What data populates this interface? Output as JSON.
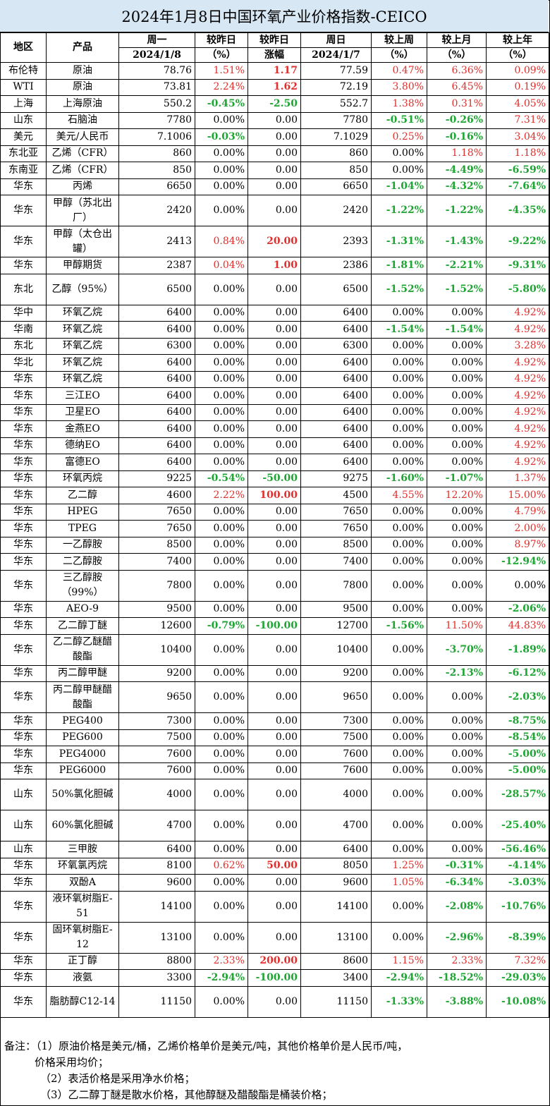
{
  "title": "2024年1月8日中国环氧产业价格指数-CEICO",
  "headers": {
    "region": "地区",
    "product": "产品",
    "mon_top": "周一",
    "mon_date": "2024/1/8",
    "chg_pct_top": "较昨日",
    "chg_pct_bottom": "（%）",
    "chg_amt_top": "较昨日",
    "chg_amt_bottom": "涨幅",
    "sun_top": "周日",
    "sun_date": "2024/1/7",
    "week_top": "较上周",
    "week_bottom": "（%）",
    "month_top": "较上月",
    "month_bottom": "（%）",
    "year_top": "较上年",
    "year_bottom": "（%）"
  },
  "rows": [
    {
      "region": "布伦特",
      "product": "原油",
      "mon": "78.76",
      "pct": "1.51%",
      "amt": "1.17",
      "sun": "77.59",
      "week": "0.47%",
      "month": "6.36%",
      "year": "0.09%"
    },
    {
      "region": "WTI",
      "product": "原油",
      "mon": "73.81",
      "pct": "2.24%",
      "amt": "1.62",
      "sun": "72.19",
      "week": "3.80%",
      "month": "6.45%",
      "year": "0.19%"
    },
    {
      "region": "上海",
      "product": "上海原油",
      "mon": "550.2",
      "pct": "-0.45%",
      "amt": "-2.50",
      "sun": "552.7",
      "week": "1.38%",
      "month": "0.31%",
      "year": "4.05%"
    },
    {
      "region": "山东",
      "product": "石脑油",
      "mon": "7780",
      "pct": "0.00%",
      "amt": "0.00",
      "sun": "7780",
      "week": "-0.51%",
      "month": "-0.26%",
      "year": "7.31%"
    },
    {
      "region": "美元",
      "product": "美元/人民币",
      "mon": "7.1006",
      "pct": "-0.03%",
      "amt": "0.00",
      "sun": "7.1029",
      "week": "0.25%",
      "month": "-0.16%",
      "year": "3.04%"
    },
    {
      "region": "东北亚",
      "product": "乙烯（CFR）",
      "mon": "860",
      "pct": "0.00%",
      "amt": "0.00",
      "sun": "860",
      "week": "0.00%",
      "month": "1.18%",
      "year": "1.18%"
    },
    {
      "region": "东南亚",
      "product": "乙烯（CFR）",
      "mon": "850",
      "pct": "0.00%",
      "amt": "0.00",
      "sun": "850",
      "week": "0.00%",
      "month": "-4.49%",
      "year": "-6.59%"
    },
    {
      "region": "华东",
      "product": "丙烯",
      "mon": "6650",
      "pct": "0.00%",
      "amt": "0.00",
      "sun": "6650",
      "week": "-1.04%",
      "month": "-4.32%",
      "year": "-7.64%"
    },
    {
      "region": "华东",
      "product": "甲醇（苏北出厂）",
      "mon": "2420",
      "pct": "0.00%",
      "amt": "0.00",
      "sun": "2420",
      "week": "-1.22%",
      "month": "-1.22%",
      "year": "-4.35%",
      "tall": true
    },
    {
      "region": "华东",
      "product": "甲醇（太仓出罐）",
      "mon": "2413",
      "pct": "0.84%",
      "amt": "20.00",
      "sun": "2393",
      "week": "-1.31%",
      "month": "-1.43%",
      "year": "-9.22%",
      "tall": true
    },
    {
      "region": "华东",
      "product": "甲醇期货",
      "mon": "2387",
      "pct": "0.04%",
      "amt": "1.00",
      "sun": "2386",
      "week": "-1.81%",
      "month": "-2.21%",
      "year": "-9.31%"
    },
    {
      "region": "东北",
      "product": "乙醇（95%）",
      "mon": "6500",
      "pct": "0.00%",
      "amt": "0.00",
      "sun": "6500",
      "week": "-1.52%",
      "month": "-1.52%",
      "year": "-5.80%",
      "tall": true
    },
    {
      "region": "华中",
      "product": "环氧乙烷",
      "mon": "6400",
      "pct": "0.00%",
      "amt": "0.00",
      "sun": "6400",
      "week": "0.00%",
      "month": "0.00%",
      "year": "4.92%"
    },
    {
      "region": "华南",
      "product": "环氧乙烷",
      "mon": "6400",
      "pct": "0.00%",
      "amt": "0.00",
      "sun": "6400",
      "week": "-1.54%",
      "month": "-1.54%",
      "year": "4.92%"
    },
    {
      "region": "东北",
      "product": "环氧乙烷",
      "mon": "6300",
      "pct": "0.00%",
      "amt": "0.00",
      "sun": "6300",
      "week": "0.00%",
      "month": "0.00%",
      "year": "3.28%"
    },
    {
      "region": "华北",
      "product": "环氧乙烷",
      "mon": "6400",
      "pct": "0.00%",
      "amt": "0.00",
      "sun": "6400",
      "week": "0.00%",
      "month": "0.00%",
      "year": "4.92%"
    },
    {
      "region": "华东",
      "product": "环氧乙烷",
      "mon": "6400",
      "pct": "0.00%",
      "amt": "0.00",
      "sun": "6400",
      "week": "0.00%",
      "month": "0.00%",
      "year": "4.92%"
    },
    {
      "region": "华东",
      "product": "三江EO",
      "mon": "6400",
      "pct": "0.00%",
      "amt": "0.00",
      "sun": "6400",
      "week": "0.00%",
      "month": "0.00%",
      "year": "4.92%"
    },
    {
      "region": "华东",
      "product": "卫星EO",
      "mon": "6400",
      "pct": "0.00%",
      "amt": "0.00",
      "sun": "6400",
      "week": "0.00%",
      "month": "0.00%",
      "year": "4.92%"
    },
    {
      "region": "华东",
      "product": "金燕EO",
      "mon": "6400",
      "pct": "0.00%",
      "amt": "0.00",
      "sun": "6400",
      "week": "0.00%",
      "month": "0.00%",
      "year": "4.92%"
    },
    {
      "region": "华东",
      "product": "德纳EO",
      "mon": "6400",
      "pct": "0.00%",
      "amt": "0.00",
      "sun": "6400",
      "week": "0.00%",
      "month": "0.00%",
      "year": "4.92%"
    },
    {
      "region": "华东",
      "product": "富德EO",
      "mon": "6400",
      "pct": "0.00%",
      "amt": "0.00",
      "sun": "6400",
      "week": "0.00%",
      "month": "0.00%",
      "year": "4.92%"
    },
    {
      "region": "华东",
      "product": "环氧丙烷",
      "mon": "9225",
      "pct": "-0.54%",
      "amt": "-50.00",
      "sun": "9275",
      "week": "-1.60%",
      "month": "-1.07%",
      "year": "1.37%"
    },
    {
      "region": "华东",
      "product": "乙二醇",
      "mon": "4600",
      "pct": "2.22%",
      "amt": "100.00",
      "sun": "4500",
      "week": "4.55%",
      "month": "12.20%",
      "year": "15.00%"
    },
    {
      "region": "华东",
      "product": "HPEG",
      "mon": "7650",
      "pct": "0.00%",
      "amt": "0.00",
      "sun": "7650",
      "week": "0.00%",
      "month": "0.00%",
      "year": "4.79%"
    },
    {
      "region": "华东",
      "product": "TPEG",
      "mon": "7650",
      "pct": "0.00%",
      "amt": "0.00",
      "sun": "7650",
      "week": "0.00%",
      "month": "0.00%",
      "year": "2.00%"
    },
    {
      "region": "华东",
      "product": "一乙醇胺",
      "mon": "8500",
      "pct": "0.00%",
      "amt": "0.00",
      "sun": "8500",
      "week": "0.00%",
      "month": "0.00%",
      "year": "8.97%"
    },
    {
      "region": "华东",
      "product": "二乙醇胺",
      "mon": "7400",
      "pct": "0.00%",
      "amt": "0.00",
      "sun": "7400",
      "week": "0.00%",
      "month": "0.00%",
      "year": "-12.94%"
    },
    {
      "region": "华东",
      "product": "三乙醇胺（99%）",
      "mon": "7800",
      "pct": "0.00%",
      "amt": "0.00",
      "sun": "7800",
      "week": "0.00%",
      "month": "0.00%",
      "year": "0.00%",
      "tall": true
    },
    {
      "region": "华东",
      "product": "AEO-9",
      "mon": "9500",
      "pct": "0.00%",
      "amt": "0.00",
      "sun": "9500",
      "week": "0.00%",
      "month": "0.00%",
      "year": "-2.06%"
    },
    {
      "region": "华东",
      "product": "乙二醇丁醚",
      "mon": "12600",
      "pct": "-0.79%",
      "amt": "-100.00",
      "sun": "12700",
      "week": "-1.56%",
      "month": "11.50%",
      "year": "44.83%"
    },
    {
      "region": "华东",
      "product": "乙二醇乙醚醋酸酯",
      "mon": "10400",
      "pct": "0.00%",
      "amt": "0.00",
      "sun": "10400",
      "week": "0.00%",
      "month": "-3.70%",
      "year": "-1.89%",
      "tall": true
    },
    {
      "region": "华东",
      "product": "丙二醇甲醚",
      "mon": "9200",
      "pct": "0.00%",
      "amt": "0.00",
      "sun": "9200",
      "week": "0.00%",
      "month": "-2.13%",
      "year": "-6.12%"
    },
    {
      "region": "华东",
      "product": "丙二醇甲醚醋酸酯",
      "mon": "9650",
      "pct": "0.00%",
      "amt": "0.00",
      "sun": "9650",
      "week": "0.00%",
      "month": "0.00%",
      "year": "-2.03%",
      "tall": true
    },
    {
      "region": "华东",
      "product": "PEG400",
      "mon": "7300",
      "pct": "0.00%",
      "amt": "0.00",
      "sun": "7300",
      "week": "0.00%",
      "month": "0.00%",
      "year": "-8.75%"
    },
    {
      "region": "华东",
      "product": "PEG600",
      "mon": "7500",
      "pct": "0.00%",
      "amt": "0.00",
      "sun": "7500",
      "week": "0.00%",
      "month": "0.00%",
      "year": "-8.54%"
    },
    {
      "region": "华东",
      "product": "PEG4000",
      "mon": "7600",
      "pct": "0.00%",
      "amt": "0.00",
      "sun": "7600",
      "week": "0.00%",
      "month": "0.00%",
      "year": "-5.00%"
    },
    {
      "region": "华东",
      "product": "PEG6000",
      "mon": "7600",
      "pct": "0.00%",
      "amt": "0.00",
      "sun": "7600",
      "week": "0.00%",
      "month": "0.00%",
      "year": "-5.00%"
    },
    {
      "region": "山东",
      "product": "50%氯化胆碱",
      "mon": "4000",
      "pct": "0.00%",
      "amt": "0.00",
      "sun": "4000",
      "week": "0.00%",
      "month": "0.00%",
      "year": "-28.57%",
      "tall": true
    },
    {
      "region": "山东",
      "product": "60%氯化胆碱",
      "mon": "4700",
      "pct": "0.00%",
      "amt": "0.00",
      "sun": "4700",
      "week": "0.00%",
      "month": "0.00%",
      "year": "-25.40%",
      "tall": true
    },
    {
      "region": "山东",
      "product": "三甲胺",
      "mon": "6400",
      "pct": "0.00%",
      "amt": "0.00",
      "sun": "6400",
      "week": "0.00%",
      "month": "0.00%",
      "year": "-56.46%"
    },
    {
      "region": "华东",
      "product": "环氧氯丙烷",
      "mon": "8100",
      "pct": "0.62%",
      "amt": "50.00",
      "sun": "8050",
      "week": "1.25%",
      "month": "-0.31%",
      "year": "-4.14%"
    },
    {
      "region": "华东",
      "product": "双酚A",
      "mon": "9600",
      "pct": "0.00%",
      "amt": "0.00",
      "sun": "9600",
      "week": "1.05%",
      "month": "-6.34%",
      "year": "-3.03%"
    },
    {
      "region": "华东",
      "product": "液环氧树脂E-51",
      "mon": "14100",
      "pct": "0.00%",
      "amt": "0.00",
      "sun": "14100",
      "week": "0.00%",
      "month": "-2.08%",
      "year": "-10.76%",
      "tall": true
    },
    {
      "region": "华东",
      "product": "固环氧树脂E-12",
      "mon": "13100",
      "pct": "0.00%",
      "amt": "0.00",
      "sun": "13100",
      "week": "0.00%",
      "month": "-2.96%",
      "year": "-8.39%",
      "tall": true
    },
    {
      "region": "华东",
      "product": "正丁醇",
      "mon": "8800",
      "pct": "2.33%",
      "amt": "200.00",
      "sun": "8600",
      "week": "1.15%",
      "month": "2.33%",
      "year": "7.32%"
    },
    {
      "region": "华东",
      "product": "液氨",
      "mon": "3300",
      "pct": "-2.94%",
      "amt": "-100.00",
      "sun": "3400",
      "week": "-2.94%",
      "month": "-18.52%",
      "year": "-29.03%"
    },
    {
      "region": "华东",
      "product": "脂肪醇C12-14",
      "mon": "11150",
      "pct": "0.00%",
      "amt": "0.00",
      "sun": "11150",
      "week": "-1.33%",
      "month": "-3.88%",
      "year": "-10.08%",
      "tall": true
    }
  ],
  "notes": {
    "line1": "备注：（1）原油价格是美元/桶，乙烯价格单价是美元/吨，其他价格单价是人民币/吨，",
    "line2": "价格采用均价；",
    "line3": "（2）表活价格是采用净水价格；",
    "line4": "（3）乙二醇丁醚是散水价格，其他醇醚及醋酸酯是桶装价格；"
  },
  "colors": {
    "title_bg": "#d7e7f3",
    "positive": "#e0302d",
    "negative": "#1ea533"
  }
}
